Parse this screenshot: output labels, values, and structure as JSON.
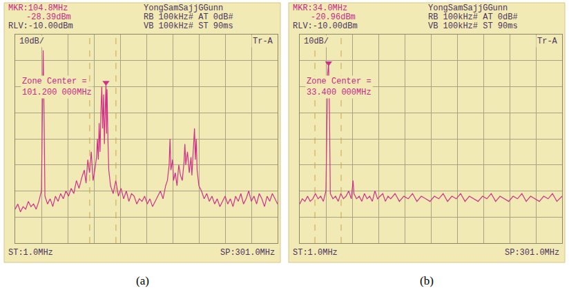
{
  "chart_data": [
    {
      "type": "line",
      "caption": "(a)",
      "header": {
        "marker_freq": "MKR:104.8MHz",
        "marker_level": "-28.39dBm",
        "reference": "RLV:-10.00dBm",
        "device": "YongSamSajjGGunn",
        "rb_line": "RB 100kHz# AT 0dB#",
        "vb_line": "VB 100kHz# ST 90ms",
        "scale": "10dB/",
        "trace": "Tr-A"
      },
      "annotations": [
        "Zone Center =",
        "101.200 000MHz"
      ],
      "start_label": "ST:1.0MHz",
      "stop_label": "SP:301.0MHz",
      "x": [
        1,
        4,
        7,
        10,
        13,
        16,
        19,
        22,
        25,
        28,
        31,
        32,
        33,
        34,
        35,
        38,
        41,
        44,
        47,
        50,
        53,
        56,
        59,
        62,
        65,
        68,
        71,
        74,
        77,
        80,
        82,
        84,
        86,
        88,
        89,
        90,
        92,
        94,
        95,
        96,
        97,
        98,
        99,
        100,
        101,
        102,
        103,
        104,
        104.8,
        105.5,
        106,
        107,
        108,
        110,
        113,
        116,
        119,
        122,
        125,
        128,
        131,
        134,
        137,
        140,
        143,
        146,
        149,
        152,
        155,
        158,
        161,
        164,
        167,
        170,
        173,
        175,
        177,
        178,
        179,
        181,
        182,
        184,
        186,
        188,
        190,
        192,
        194,
        195,
        196,
        198,
        200,
        202,
        203,
        205,
        206,
        207,
        208,
        209,
        211,
        214,
        217,
        220,
        223,
        226,
        229,
        232,
        235,
        238,
        241,
        244,
        247,
        250,
        253,
        256,
        259,
        262,
        265,
        268,
        271,
        274,
        277,
        280,
        283,
        286,
        289,
        292,
        295,
        298,
        301
      ],
      "values": [
        -77,
        -75,
        -78,
        -76,
        -77,
        -74,
        -76,
        -75,
        -77,
        -74,
        -70,
        -40,
        -16,
        -40,
        -72,
        -75,
        -73,
        -76,
        -72,
        -74,
        -71,
        -73,
        -70,
        -72,
        -69,
        -71,
        -66,
        -69,
        -65,
        -62,
        -67,
        -58,
        -63,
        -55,
        -61,
        -66,
        -62,
        -57,
        -50,
        -58,
        -44,
        -55,
        -40,
        -30,
        -46,
        -33,
        -52,
        -35,
        -28.39,
        -48,
        -31,
        -50,
        -62,
        -68,
        -71,
        -66,
        -72,
        -69,
        -73,
        -70,
        -74,
        -71,
        -72,
        -75,
        -73,
        -74,
        -72,
        -75,
        -73,
        -76,
        -74,
        -72,
        -70,
        -73,
        -68,
        -66,
        -60,
        -50,
        -62,
        -58,
        -66,
        -63,
        -68,
        -60,
        -64,
        -66,
        -59,
        -52,
        -60,
        -55,
        -63,
        -57,
        -64,
        -52,
        -46,
        -58,
        -50,
        -62,
        -68,
        -70,
        -73,
        -71,
        -74,
        -72,
        -75,
        -73,
        -76,
        -74,
        -72,
        -75,
        -73,
        -76,
        -72,
        -74,
        -71,
        -75,
        -73,
        -70,
        -74,
        -72,
        -75,
        -71,
        -73,
        -76,
        -72,
        -74,
        -71,
        -73,
        -75
      ],
      "color": "#d0308a",
      "peak_marker": {
        "x": 104.8,
        "y": -28.39
      },
      "zone": [
        86.2,
        116.2
      ],
      "xlim": [
        1,
        301
      ],
      "ylim": [
        -90,
        -10
      ],
      "xticks": [
        1,
        31,
        61,
        91,
        121,
        151,
        181,
        211,
        241,
        271,
        301
      ],
      "yticks": [
        -90,
        -80,
        -70,
        -60,
        -50,
        -40,
        -30,
        -20,
        -10
      ],
      "grid": true,
      "tick_labels": false
    },
    {
      "type": "line",
      "caption": "(b)",
      "header": {
        "marker_freq": "MKR:34.0MHz",
        "marker_level": "-20.96dBm",
        "reference": "RLV:-10.00dBm",
        "device": "YongSamSajjGGunn",
        "rb_line": "RB 100kHz# AT 0dB#",
        "vb_line": "VB 100kHz# ST 90ms",
        "scale": "10dB/",
        "trace": "Tr-A"
      },
      "annotations": [
        "Zone Center =",
        "33.400 000MHz"
      ],
      "start_label": "ST:1.0MHz",
      "stop_label": "SP:301.0MHz",
      "x": [
        1,
        4,
        7,
        10,
        13,
        16,
        19,
        22,
        25,
        28,
        31,
        32,
        33,
        34,
        35,
        36,
        39,
        42,
        45,
        48,
        51,
        54,
        57,
        60,
        62,
        63,
        66,
        69,
        72,
        75,
        78,
        81,
        84,
        87,
        90,
        93,
        96,
        99,
        102,
        105,
        110,
        115,
        120,
        125,
        130,
        135,
        140,
        145,
        150,
        155,
        160,
        165,
        170,
        175,
        180,
        185,
        190,
        195,
        200,
        205,
        210,
        215,
        220,
        225,
        230,
        235,
        240,
        245,
        250,
        255,
        260,
        265,
        270,
        275,
        280,
        285,
        290,
        295,
        301
      ],
      "values": [
        -75,
        -73,
        -74,
        -72,
        -74,
        -73,
        -71,
        -73,
        -72,
        -74,
        -70,
        -45,
        -25,
        -20.96,
        -38,
        -71,
        -73,
        -72,
        -74,
        -71,
        -73,
        -72,
        -70,
        -73,
        -66,
        -71,
        -73,
        -72,
        -74,
        -71,
        -73,
        -72,
        -74,
        -70,
        -73,
        -72,
        -71,
        -74,
        -72,
        -73,
        -71,
        -74,
        -72,
        -73,
        -71,
        -74,
        -72,
        -73,
        -74,
        -72,
        -73,
        -71,
        -74,
        -72,
        -73,
        -71,
        -74,
        -72,
        -73,
        -74,
        -72,
        -73,
        -71,
        -74,
        -72,
        -73,
        -74,
        -72,
        -73,
        -71,
        -74,
        -72,
        -73,
        -74,
        -72,
        -73,
        -71,
        -74,
        -72
      ],
      "color": "#d0308a",
      "peak_marker": {
        "x": 34,
        "y": -20.96
      },
      "zone": [
        18.4,
        48.4
      ],
      "xlim": [
        1,
        301
      ],
      "ylim": [
        -90,
        -10
      ],
      "xticks": [
        1,
        31,
        61,
        91,
        121,
        151,
        181,
        211,
        241,
        271,
        301
      ],
      "yticks": [
        -90,
        -80,
        -70,
        -60,
        -50,
        -40,
        -30,
        -20,
        -10
      ],
      "grid": true,
      "tick_labels": false
    }
  ]
}
